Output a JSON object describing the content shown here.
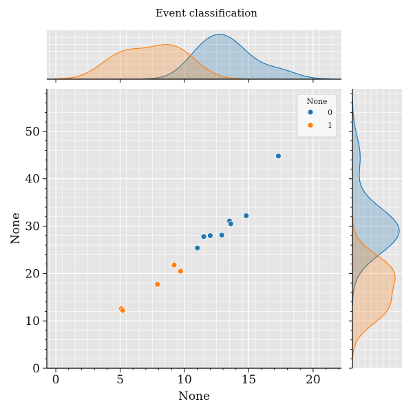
{
  "chart_data": {
    "type": "scatter",
    "title": "Event classification",
    "xlabel": "None",
    "ylabel": "None",
    "xlim": [
      -0.7,
      22.2
    ],
    "ylim": [
      0,
      59
    ],
    "xticks": [
      0,
      5,
      10,
      15,
      20
    ],
    "yticks": [
      0,
      10,
      20,
      30,
      40,
      50
    ],
    "grid": true,
    "legend": {
      "title": "None",
      "position": "top-right"
    },
    "series": [
      {
        "name": "0",
        "color": "#1f77b4",
        "x": [
          11.0,
          11.5,
          12.0,
          12.9,
          13.5,
          13.6,
          14.8,
          17.3
        ],
        "y": [
          25.4,
          27.8,
          28.0,
          28.1,
          31.1,
          30.5,
          32.2,
          44.8
        ]
      },
      {
        "name": "1",
        "color": "#ff7f0e",
        "x": [
          5.1,
          5.2,
          7.9,
          9.2,
          9.7
        ],
        "y": [
          12.6,
          12.2,
          17.7,
          21.8,
          20.5
        ]
      }
    ]
  }
}
